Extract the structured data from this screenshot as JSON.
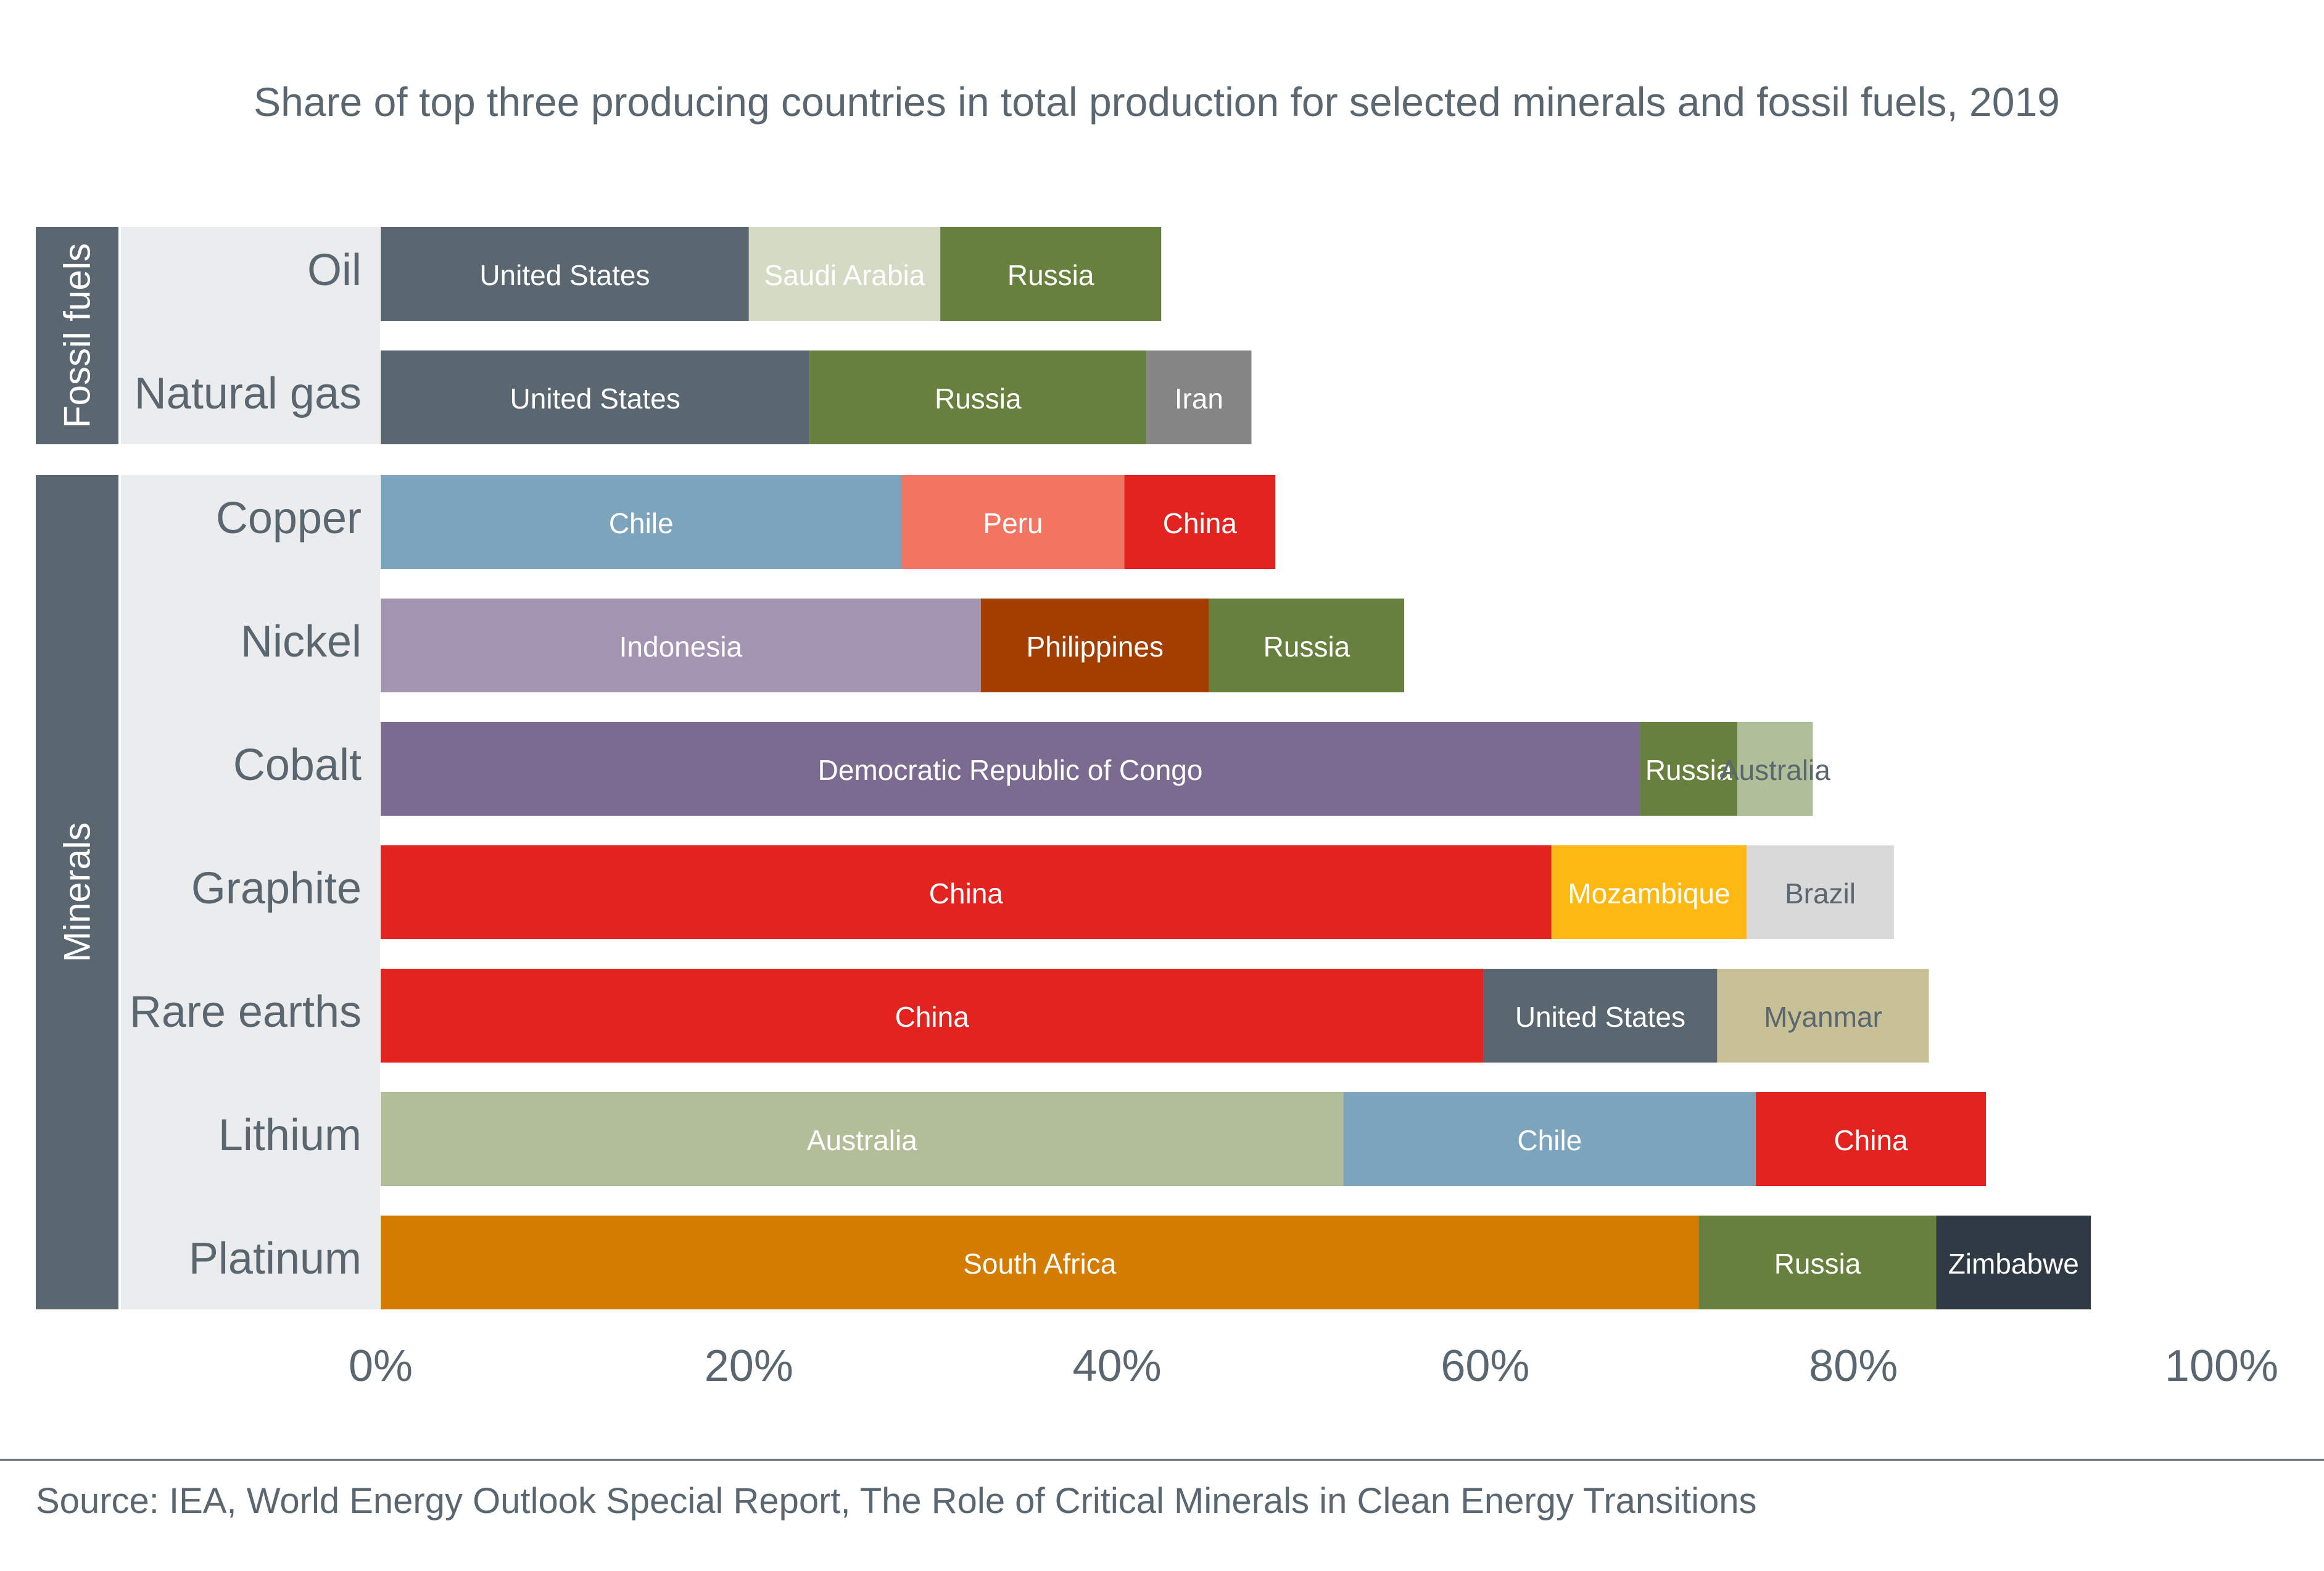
{
  "chart_data": {
    "type": "bar",
    "orientation": "horizontal",
    "stacked": true,
    "title": "Share of top three producing countries in total production for selected minerals and fossil fuels, 2019",
    "source": "Source: IEA, World Energy Outlook Special Report, The Role of Critical Minerals in Clean Energy Transitions",
    "xlim": [
      0,
      100
    ],
    "x_ticks": [
      "0%",
      "20%",
      "40%",
      "60%",
      "80%",
      "100%"
    ],
    "grid": false,
    "groups": [
      {
        "name": "Fossil fuels",
        "color": "#5a6670",
        "rows": [
          {
            "category": "Oil",
            "segments": [
              {
                "country": "United States",
                "value": 20,
                "color": "#5a6670",
                "text_color": "#ffffff"
              },
              {
                "country": "Saudi Arabia",
                "value": 10.4,
                "color": "#d4dac4",
                "text_color": "#ffffff"
              },
              {
                "country": "Russia",
                "value": 12,
                "color": "#68803e",
                "text_color": "#ffffff"
              }
            ]
          },
          {
            "category": "Natural gas",
            "segments": [
              {
                "country": "United States",
                "value": 23.3,
                "color": "#5a6670",
                "text_color": "#ffffff"
              },
              {
                "country": "Russia",
                "value": 18.3,
                "color": "#68803e",
                "text_color": "#ffffff"
              },
              {
                "country": "Iran",
                "value": 5.7,
                "color": "#858585",
                "text_color": "#ffffff"
              }
            ]
          }
        ]
      },
      {
        "name": "Minerals",
        "color": "#5a6670",
        "rows": [
          {
            "category": "Copper",
            "segments": [
              {
                "country": "Chile",
                "value": 28.3,
                "color": "#7ca4bc",
                "text_color": "#ffffff"
              },
              {
                "country": "Peru",
                "value": 12.1,
                "color": "#f27561",
                "text_color": "#ffffff"
              },
              {
                "country": "China",
                "value": 8.2,
                "color": "#e2231f",
                "text_color": "#ffffff"
              }
            ]
          },
          {
            "category": "Nickel",
            "segments": [
              {
                "country": "Indonesia",
                "value": 32.6,
                "color": "#a395b2",
                "text_color": "#ffffff"
              },
              {
                "country": "Philippines",
                "value": 12.4,
                "color": "#a23f00",
                "text_color": "#ffffff"
              },
              {
                "country": "Russia",
                "value": 10.6,
                "color": "#68803e",
                "text_color": "#ffffff"
              }
            ]
          },
          {
            "category": "Cobalt",
            "segments": [
              {
                "country": "Democratic Republic of Congo",
                "value": 68.4,
                "color": "#7c6b91",
                "text_color": "#ffffff"
              },
              {
                "country": "Russia",
                "value": 5.3,
                "color": "#68803e",
                "text_color": "#ffffff"
              },
              {
                "country": "Australia",
                "value": 4.1,
                "color": "#afbf98",
                "text_color": "#5a6670"
              }
            ]
          },
          {
            "category": "Graphite",
            "segments": [
              {
                "country": "China",
                "value": 63.6,
                "color": "#e2231f",
                "text_color": "#ffffff"
              },
              {
                "country": "Mozambique",
                "value": 10.6,
                "color": "#fdb813",
                "text_color": "#ffffff"
              },
              {
                "country": "Brazil",
                "value": 8,
                "color": "#d9d9d9",
                "text_color": "#5a6670"
              }
            ]
          },
          {
            "category": "Rare earths",
            "segments": [
              {
                "country": "China",
                "value": 59.9,
                "color": "#e2231f",
                "text_color": "#ffffff"
              },
              {
                "country": "United States",
                "value": 12.7,
                "color": "#5a6670",
                "text_color": "#ffffff"
              },
              {
                "country": "Myanmar",
                "value": 11.5,
                "color": "#c8c197",
                "text_color": "#5a6670"
              }
            ]
          },
          {
            "category": "Lithium",
            "segments": [
              {
                "country": "Australia",
                "value": 52.3,
                "color": "#b1be98",
                "text_color": "#ffffff"
              },
              {
                "country": "Chile",
                "value": 22.4,
                "color": "#7ca4bc",
                "text_color": "#ffffff"
              },
              {
                "country": "China",
                "value": 12.5,
                "color": "#e2231f",
                "text_color": "#ffffff"
              }
            ]
          },
          {
            "category": "Platinum",
            "segments": [
              {
                "country": "South Africa",
                "value": 71.6,
                "color": "#d37c00",
                "text_color": "#ffffff"
              },
              {
                "country": "Russia",
                "value": 12.9,
                "color": "#68803e",
                "text_color": "#ffffff"
              },
              {
                "country": "Zimbabwe",
                "value": 8.4,
                "color": "#2f3a44",
                "text_color": "#ffffff"
              }
            ]
          }
        ]
      }
    ]
  }
}
